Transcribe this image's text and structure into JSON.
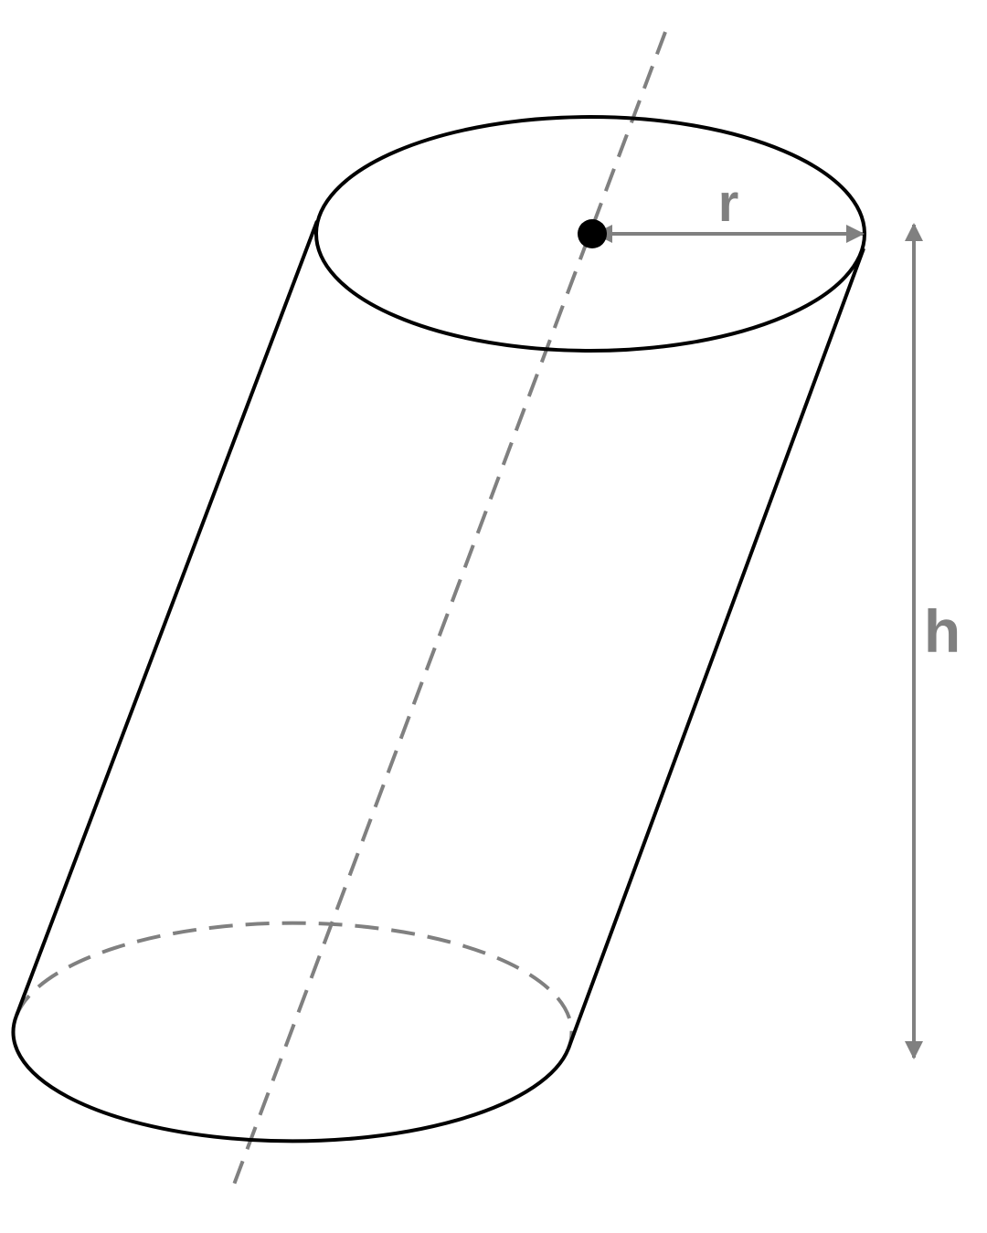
{
  "diagram": {
    "labels": {
      "radius": "r",
      "height": "h"
    },
    "colors": {
      "outline": "#000000",
      "annotation": "#808080"
    }
  }
}
